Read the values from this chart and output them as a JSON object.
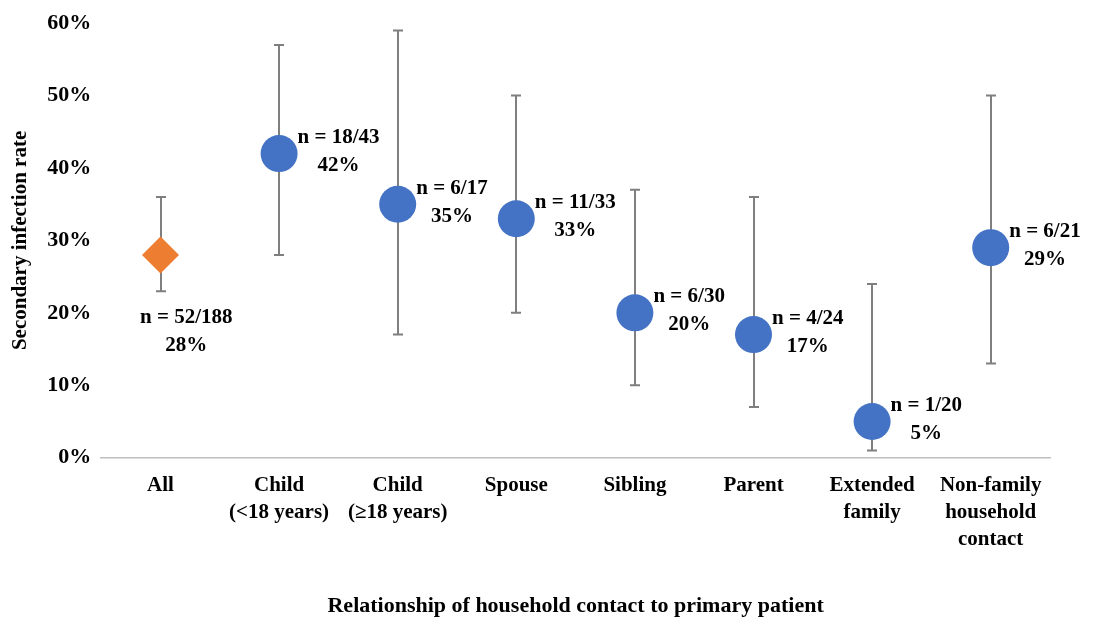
{
  "chart_data": {
    "type": "scatter",
    "xlabel": "Relationship of household contact to primary patient",
    "ylabel": "Secondary infection rate",
    "categories": [
      "All",
      "Child\n(<18 years)",
      "Child\n(≥18 years)",
      "Spouse",
      "Sibling",
      "Parent",
      "Extended\nfamily",
      "Non-family\nhousehold\ncontact"
    ],
    "ylim": [
      0,
      60
    ],
    "yticks": [
      {
        "value": 0,
        "label": "0%"
      },
      {
        "value": 10,
        "label": "10%"
      },
      {
        "value": 20,
        "label": "20%"
      },
      {
        "value": 30,
        "label": "30%"
      },
      {
        "value": 40,
        "label": "40%"
      },
      {
        "value": 50,
        "label": "50%"
      },
      {
        "value": 60,
        "label": "60%"
      }
    ],
    "series": [
      {
        "color": "#ed7d31",
        "marker": "diamond",
        "values": [
          28,
          null,
          null,
          null,
          null,
          null,
          null,
          null
        ],
        "errors": [
          [
            23,
            36
          ],
          null,
          null,
          null,
          null,
          null,
          null,
          null
        ],
        "value_labels": [
          "n = 52/188\n28%",
          null,
          null,
          null,
          null,
          null,
          null,
          null
        ]
      },
      {
        "color": "#4472c4",
        "marker": "circle",
        "values": [
          null,
          42,
          35,
          33,
          20,
          17,
          5,
          29
        ],
        "errors": [
          null,
          [
            28,
            57
          ],
          [
            17,
            59
          ],
          [
            20,
            50
          ],
          [
            10,
            37
          ],
          [
            7,
            36
          ],
          [
            1,
            24
          ],
          [
            13,
            50
          ]
        ],
        "value_labels": [
          null,
          "n = 18/43\n42%",
          "n = 6/17\n35%",
          "n = 11/33\n33%",
          "n = 6/30\n20%",
          "n = 4/24\n17%",
          "n = 1/20\n5%",
          "n = 6/21\n29%"
        ]
      }
    ]
  }
}
